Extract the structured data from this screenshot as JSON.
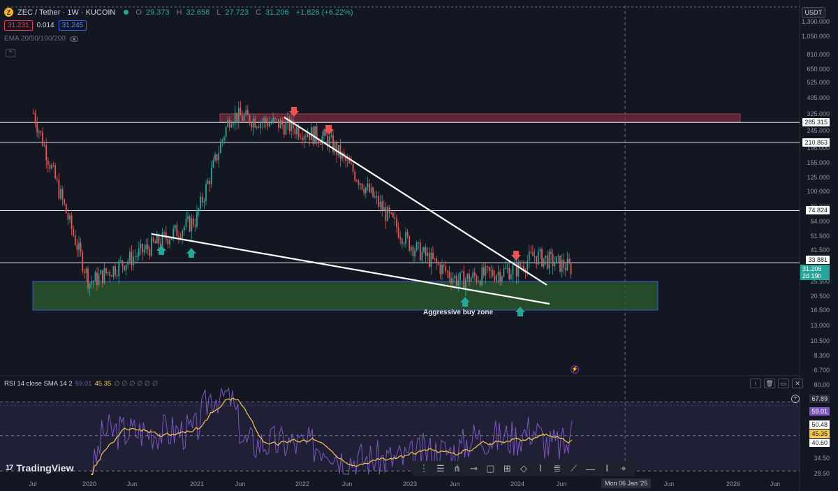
{
  "header": {
    "symbol": "ZEC / Tether · 1W · KUCOIN",
    "coin_icon": "zcash-coin-icon",
    "o_label": "O",
    "o_value": "29.373",
    "h_label": "H",
    "h_value": "32.658",
    "l_label": "L",
    "l_value": "27.723",
    "c_label": "C",
    "c_value": "31.206",
    "change": "+1.826 (+6.22%)"
  },
  "trade": {
    "sell": "31.231",
    "spread": "0.014",
    "buy": "31.245"
  },
  "indicator_legend": {
    "ema": "EMA 20/50/100/200"
  },
  "currency_button": "USDT",
  "price_axis": [
    "1,300.000",
    "1,050.000",
    "810.000",
    "650.000",
    "525.000",
    "405.000",
    "325.000",
    "245.000",
    "195.000",
    "155.000",
    "125.000",
    "100.000",
    "80.000",
    "64.000",
    "51.500",
    "41.500",
    "25.500",
    "20.500",
    "16.500",
    "13.000",
    "10.500",
    "8.300",
    "6.700"
  ],
  "levels": {
    "l1": "285.315",
    "l2": "210.863",
    "l3": "74.824",
    "l4": "33.881"
  },
  "current": {
    "price": "31.206",
    "countdown": "2d 19h"
  },
  "annotation": "Aggressive buy zone",
  "rsi": {
    "title": "RSI 14 close SMA 14 2",
    "rsi_value": "59.01",
    "sma_value": "45.35",
    "symbols": "∅ ∅ ∅ ∅ ∅ ∅",
    "axis": {
      "a80": "80.00",
      "a67": "67.89",
      "a50": "50.48",
      "a40": "40.60",
      "a34": "34.50",
      "a28": "28.50"
    },
    "label_rsi": "59.01",
    "label_sma": "45.35"
  },
  "pane_tools": [
    "↑",
    "🗑",
    "▭",
    "✕"
  ],
  "time_axis": [
    "Jul",
    "2020",
    "Jun",
    "2021",
    "Jun",
    "2022",
    "Jun",
    "2023",
    "Jun",
    "2024",
    "Jun",
    "Jun",
    "2026",
    "Jun"
  ],
  "crosshair_time": "Mon 06 Jan '25",
  "logo_text": "TradingView",
  "colors": {
    "bg": "#131722",
    "up": "#26a69a",
    "down": "#ef5350",
    "zone_green": "#2e5d2f",
    "zone_red": "#7a2e3e",
    "rsi": "#7e57c2",
    "rsi_sma": "#f7c948"
  },
  "chart_data": {
    "type": "candlestick",
    "scale": "log",
    "ylim": [
      6.7,
      1300
    ],
    "interval": "1W",
    "key_points": {
      "x": [
        "Jul 2019",
        "2020",
        "2021",
        "May 2021",
        "Nov 2021",
        "Mar 2022",
        "2023",
        "Jun 2023",
        "Dec 2023",
        "Mar 2024",
        "Jul 2024"
      ],
      "y": [
        340,
        25,
        65,
        320,
        270,
        220,
        45,
        26,
        31,
        38,
        31.206
      ]
    },
    "zones": [
      {
        "name": "resistance",
        "from": 285.315,
        "to": 325
      },
      {
        "name": "Aggressive buy zone",
        "from": 16.5,
        "to": 25.5
      }
    ],
    "horizontal_lines": [
      285.315,
      210.863,
      74.824,
      33.881
    ]
  }
}
